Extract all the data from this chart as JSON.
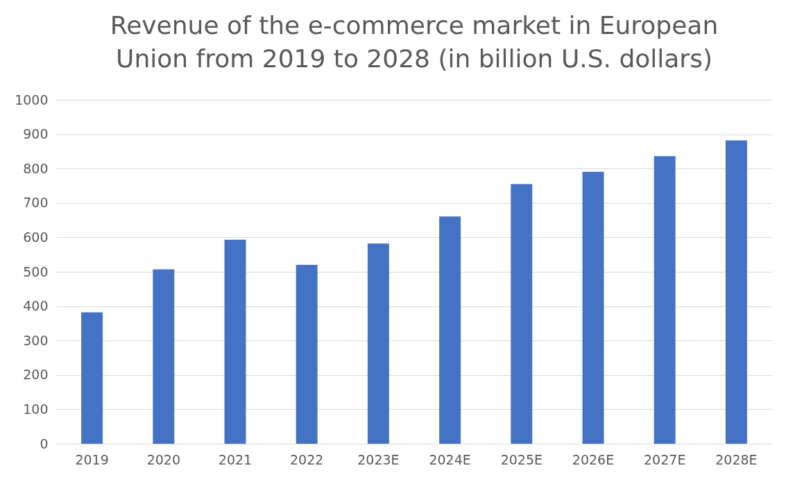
{
  "chart_data": {
    "type": "bar",
    "title": "Revenue of the e-commerce market in European Union from 2019 to 2028 (in billion U.S. dollars)",
    "categories": [
      "2019",
      "2020",
      "2021",
      "2022",
      "2023E",
      "2024E",
      "2025E",
      "2026E",
      "2027E",
      "2028E"
    ],
    "values": [
      382,
      507,
      593,
      520,
      582,
      661,
      755,
      791,
      836,
      882
    ],
    "color": "#4472c4",
    "ylim": [
      0,
      1000
    ],
    "yticks": [
      0,
      100,
      200,
      300,
      400,
      500,
      600,
      700,
      800,
      900,
      1000
    ],
    "grid": "y"
  }
}
